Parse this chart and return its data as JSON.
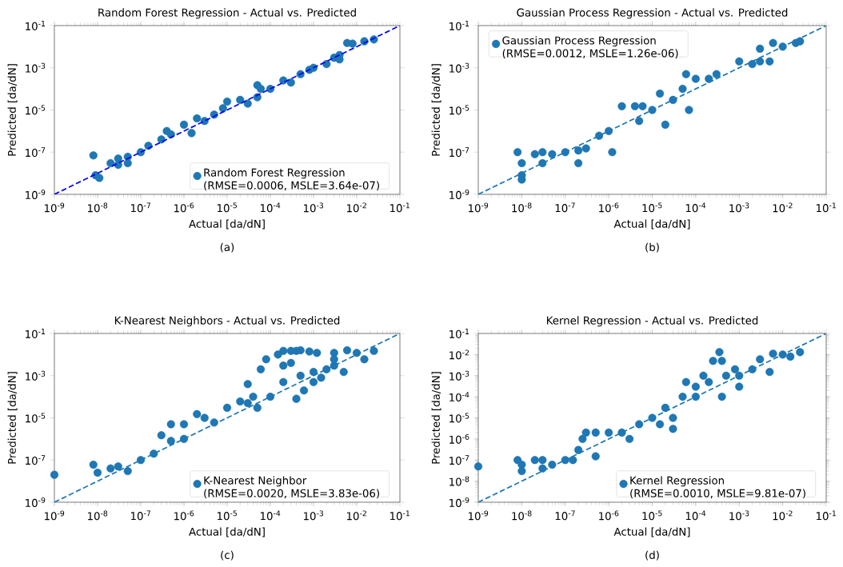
{
  "chart_data": [
    {
      "type": "scatter",
      "title": "Random Forest Regression - Actual vs. Predicted",
      "xlabel": "Actual [da/dN]",
      "ylabel": "Predicted [da/dN]",
      "log": "xy",
      "grid": false,
      "legend": "bottom right",
      "xlim": [
        1e-09,
        0.1
      ],
      "ylim": [
        1e-09,
        0.1
      ],
      "xticks": [
        {
          "value": 1e-09,
          "label": "10$^{-9}$"
        },
        {
          "value": 1e-08,
          "label": "10$^{-8}$"
        },
        {
          "value": 1e-07,
          "label": "10$^{-7}$"
        },
        {
          "value": 1e-06,
          "label": "10$^{-6}$"
        },
        {
          "value": 1e-05,
          "label": "10$^{-5}$"
        },
        {
          "value": 0.0001,
          "label": "10$^{-4}$"
        },
        {
          "value": 0.001,
          "label": "10$^{-3}$"
        },
        {
          "value": 0.01,
          "label": "10$^{-2}$"
        },
        {
          "value": 0.1,
          "label": "10$^{-1}$"
        }
      ],
      "yticks": [
        {
          "value": 1e-09,
          "label": "10$^{-9}$"
        },
        {
          "value": 1e-07,
          "label": "10$^{-7}$"
        },
        {
          "value": 1e-05,
          "label": "10$^{-5}$"
        },
        {
          "value": 0.001,
          "label": "10$^{-3}$"
        },
        {
          "value": 0.1,
          "label": "10$^{-1}$"
        }
      ],
      "annotations": [
        "(a)"
      ],
      "series": [
        {
          "marker": "circle",
          "name": "Random Forest Regression (RMSE=0.0006, MSLE=3.64e-07)",
          "color": "#1f77b4",
          "x": [
            8e-09,
            9e-09,
            1.1e-08,
            2e-08,
            3e-08,
            3e-08,
            5e-08,
            5e-08,
            1e-07,
            1.5e-07,
            3e-07,
            4e-07,
            5e-07,
            1e-06,
            1.5e-06,
            2e-06,
            3e-06,
            5e-06,
            8e-06,
            1e-05,
            2e-05,
            3e-05,
            5e-05,
            5e-05,
            6e-05,
            0.0001,
            0.0002,
            0.0003,
            0.0005,
            0.0008,
            0.001,
            0.002,
            0.003,
            0.004,
            0.004,
            0.006,
            0.008,
            0.015,
            0.025
          ],
          "values": [
            7e-08,
            8e-09,
            6e-09,
            3e-08,
            5e-08,
            2.5e-08,
            6e-08,
            3e-08,
            1e-07,
            2e-07,
            4e-07,
            1e-06,
            7e-07,
            2e-06,
            8e-07,
            4e-06,
            3e-06,
            6e-06,
            1.2e-05,
            2.5e-05,
            3e-05,
            2e-05,
            4e-05,
            0.00015,
            0.0001,
            0.0001,
            0.00025,
            0.0002,
            0.0005,
            0.0008,
            0.001,
            0.0015,
            0.003,
            0.004,
            0.0025,
            0.015,
            0.014,
            0.018,
            0.022
          ]
        },
        {
          "type": "line",
          "marker": "none",
          "color": "#0000ff",
          "line_style": "dashed",
          "x": [
            1e-09,
            0.1
          ],
          "values": [
            1e-09,
            0.1
          ]
        }
      ]
    },
    {
      "type": "scatter",
      "title": "Gaussian Process Regression - Actual vs. Predicted",
      "xlabel": "Actual [da/dN]",
      "ylabel": "Predicted [da/dN]",
      "log": "xy",
      "grid": false,
      "legend": "top left",
      "xlim": [
        1e-09,
        0.1
      ],
      "ylim": [
        1e-09,
        0.1
      ],
      "xticks": [
        {
          "value": 1e-09,
          "label": "10$^{-9}$"
        },
        {
          "value": 1e-08,
          "label": "10$^{-8}$"
        },
        {
          "value": 1e-07,
          "label": "10$^{-7}$"
        },
        {
          "value": 1e-06,
          "label": "10$^{-6}$"
        },
        {
          "value": 1e-05,
          "label": "10$^{-5}$"
        },
        {
          "value": 0.0001,
          "label": "10$^{-4}$"
        },
        {
          "value": 0.001,
          "label": "10$^{-3}$"
        },
        {
          "value": 0.01,
          "label": "10$^{-2}$"
        },
        {
          "value": 0.1,
          "label": "10$^{-1}$"
        }
      ],
      "yticks": [
        {
          "value": 1e-09,
          "label": "10$^{-9}$"
        },
        {
          "value": 1e-07,
          "label": "10$^{-7}$"
        },
        {
          "value": 1e-05,
          "label": "10$^{-5}$"
        },
        {
          "value": 0.001,
          "label": "10$^{-3}$"
        },
        {
          "value": 0.1,
          "label": "10$^{-1}$"
        }
      ],
      "annotations": [
        "(b)"
      ],
      "series": [
        {
          "marker": "circle",
          "name": "Gaussian Process Regression (RMSE=0.0012, MSLE=1.26e-06)",
          "color": "#1f77b4",
          "x": [
            8e-09,
            1e-08,
            1e-08,
            1e-08,
            2e-08,
            3e-08,
            3e-08,
            5e-08,
            1e-07,
            2e-07,
            2e-07,
            3e-07,
            6e-07,
            1e-06,
            1.2e-06,
            2e-06,
            4e-06,
            6e-06,
            5e-06,
            1e-05,
            1.5e-05,
            2e-05,
            3e-05,
            5e-05,
            7e-05,
            6e-05,
            0.0001,
            0.0002,
            0.0003,
            0.001,
            0.002,
            0.003,
            0.003,
            0.005,
            0.006,
            0.01,
            0.02,
            0.025
          ],
          "values": [
            1e-07,
            3e-08,
            8e-09,
            5e-09,
            8e-08,
            1e-07,
            3e-08,
            8e-08,
            1e-07,
            3e-08,
            1.2e-07,
            1.5e-07,
            6e-07,
            1e-06,
            1e-07,
            1.5e-05,
            1.5e-05,
            1.5e-05,
            3e-06,
            1e-05,
            6e-05,
            2e-06,
            3e-05,
            0.0001,
            1e-05,
            0.0005,
            0.0003,
            0.0003,
            0.0005,
            0.002,
            0.0015,
            0.008,
            0.002,
            0.002,
            0.015,
            0.01,
            0.015,
            0.018
          ]
        },
        {
          "type": "line",
          "marker": "none",
          "color": "#1f77b4",
          "line_style": "dashed",
          "x": [
            1e-09,
            0.1
          ],
          "values": [
            1e-09,
            0.1
          ]
        }
      ]
    },
    {
      "type": "scatter",
      "title": "K-Nearest Neighbors - Actual vs. Predicted",
      "xlabel": "Actual [da/dN]",
      "ylabel": "Predicted [da/dN]",
      "log": "xy",
      "grid": false,
      "legend": "bottom right",
      "xlim": [
        1e-09,
        0.1
      ],
      "ylim": [
        1e-09,
        0.1
      ],
      "xticks": [
        {
          "value": 1e-09,
          "label": "10$^{-9}$"
        },
        {
          "value": 1e-08,
          "label": "10$^{-8}$"
        },
        {
          "value": 1e-07,
          "label": "10$^{-7}$"
        },
        {
          "value": 1e-06,
          "label": "10$^{-6}$"
        },
        {
          "value": 1e-05,
          "label": "10$^{-5}$"
        },
        {
          "value": 0.0001,
          "label": "10$^{-4}$"
        },
        {
          "value": 0.001,
          "label": "10$^{-3}$"
        },
        {
          "value": 0.01,
          "label": "10$^{-2}$"
        },
        {
          "value": 0.1,
          "label": "10$^{-1}$"
        }
      ],
      "yticks": [
        {
          "value": 1e-09,
          "label": "10$^{-9}$"
        },
        {
          "value": 1e-07,
          "label": "10$^{-7}$"
        },
        {
          "value": 1e-05,
          "label": "10$^{-5}$"
        },
        {
          "value": 0.001,
          "label": "10$^{-3}$"
        },
        {
          "value": 0.1,
          "label": "10$^{-1}$"
        }
      ],
      "annotations": [
        "(c)"
      ],
      "series": [
        {
          "marker": "circle",
          "name": "K-Nearest Neighbor (RMSE=0.0020, MSLE=3.83e-06)",
          "color": "#1f77b4",
          "x": [
            1e-09,
            8e-09,
            1e-08,
            2e-08,
            3e-08,
            5e-08,
            1e-07,
            2e-07,
            3e-07,
            5e-07,
            5e-07,
            1e-06,
            1e-06,
            2e-06,
            3e-06,
            5e-06,
            1e-05,
            2e-05,
            3e-05,
            3e-05,
            4e-05,
            5e-05,
            6e-05,
            8e-05,
            0.0001,
            0.00015,
            0.0002,
            0.0003,
            0.0004,
            0.0005,
            0.0008,
            0.0012,
            0.003,
            0.0002,
            0.0003,
            0.0002,
            0.0004,
            0.0005,
            0.0006,
            0.001,
            0.001,
            0.002,
            0.003,
            0.003,
            0.005,
            0.006,
            0.01,
            0.015,
            0.025,
            0.0015
          ],
          "values": [
            2e-08,
            6e-08,
            2.5e-08,
            4e-08,
            5e-08,
            3e-08,
            1e-07,
            2e-07,
            1.5e-06,
            5e-06,
            8e-07,
            5e-06,
            1e-06,
            1.5e-05,
            1e-05,
            6e-06,
            3e-05,
            6e-05,
            5e-05,
            0.0004,
            0.0001,
            3e-05,
            0.002,
            0.006,
            0.0001,
            0.01,
            0.015,
            0.015,
            0.015,
            0.016,
            0.014,
            0.012,
            0.012,
            0.003,
            0.004,
            0.0005,
            8e-05,
            0.001,
            0.0002,
            0.0005,
            0.0015,
            0.002,
            0.003,
            0.006,
            0.0015,
            0.016,
            0.012,
            0.006,
            0.015,
            0.0008
          ]
        },
        {
          "type": "line",
          "marker": "none",
          "color": "#1f77b4",
          "line_style": "dashed",
          "x": [
            1e-09,
            0.1
          ],
          "values": [
            1e-09,
            0.1
          ]
        }
      ]
    },
    {
      "type": "scatter",
      "title": "Kernel Regression - Actual vs. Predicted",
      "xlabel": "Actual [da/dN]",
      "ylabel": "Predicted [da/dN]",
      "log": "xy",
      "grid": false,
      "legend": "bottom right",
      "xlim": [
        1e-09,
        0.1
      ],
      "ylim": [
        1e-09,
        0.1
      ],
      "xticks": [
        {
          "value": 1e-09,
          "label": "10$^{-9}$"
        },
        {
          "value": 1e-08,
          "label": "10$^{-8}$"
        },
        {
          "value": 1e-07,
          "label": "10$^{-7}$"
        },
        {
          "value": 1e-06,
          "label": "10$^{-6}$"
        },
        {
          "value": 1e-05,
          "label": "10$^{-5}$"
        },
        {
          "value": 0.0001,
          "label": "10$^{-4}$"
        },
        {
          "value": 0.001,
          "label": "10$^{-3}$"
        },
        {
          "value": 0.01,
          "label": "10$^{-2}$"
        },
        {
          "value": 0.1,
          "label": "10$^{-1}$"
        }
      ],
      "yticks": [
        {
          "value": 1e-09,
          "label": "10$^{-9}$"
        },
        {
          "value": 1e-08,
          "label": "10$^{-8}$"
        },
        {
          "value": 1e-07,
          "label": "10$^{-7}$"
        },
        {
          "value": 1e-06,
          "label": "10$^{-6}$"
        },
        {
          "value": 1e-05,
          "label": "10$^{-5}$"
        },
        {
          "value": 0.0001,
          "label": "10$^{-4}$"
        },
        {
          "value": 0.001,
          "label": "10$^{-3}$"
        },
        {
          "value": 0.01,
          "label": "10$^{-2}$"
        },
        {
          "value": 0.1,
          "label": "10$^{-1}$"
        }
      ],
      "annotations": [
        "(d)"
      ],
      "series": [
        {
          "marker": "circle",
          "name": "Kernel Regression (RMSE=0.0010, MSLE=9.81e-07)",
          "color": "#1f77b4",
          "x": [
            1e-09,
            8e-09,
            1e-08,
            1e-08,
            2e-08,
            3e-08,
            3e-08,
            5e-08,
            1e-07,
            1.5e-07,
            2e-07,
            2.5e-07,
            3e-07,
            5e-07,
            5e-07,
            1e-06,
            2e-06,
            3e-06,
            5e-06,
            1e-05,
            1.5e-05,
            2e-05,
            3e-05,
            3e-05,
            5e-05,
            6e-05,
            0.0001,
            0.0001,
            0.00015,
            0.0002,
            0.00025,
            0.00035,
            0.0004,
            0.0004,
            0.0005,
            0.0008,
            0.001,
            0.001,
            0.002,
            0.003,
            0.005,
            0.006,
            0.01,
            0.015,
            0.025
          ],
          "values": [
            5e-08,
            1e-07,
            3e-08,
            6e-08,
            1e-07,
            4e-08,
            1e-07,
            6e-08,
            1e-07,
            1e-07,
            3e-07,
            1e-06,
            2e-06,
            2e-06,
            1.5e-07,
            2e-06,
            2e-06,
            1e-06,
            5e-06,
            1e-05,
            5e-06,
            3e-05,
            3e-06,
            1e-05,
            0.0001,
            0.0005,
            0.0003,
            0.0001,
            0.001,
            0.0005,
            0.005,
            0.013,
            0.005,
            0.0001,
            0.001,
            0.002,
            0.0003,
            0.001,
            0.002,
            0.006,
            0.0015,
            0.011,
            0.01,
            0.008,
            0.013
          ]
        },
        {
          "type": "line",
          "marker": "none",
          "color": "#1f77b4",
          "line_style": "dashed",
          "x": [
            1e-09,
            0.1
          ],
          "values": [
            1e-09,
            0.1
          ]
        }
      ]
    }
  ]
}
